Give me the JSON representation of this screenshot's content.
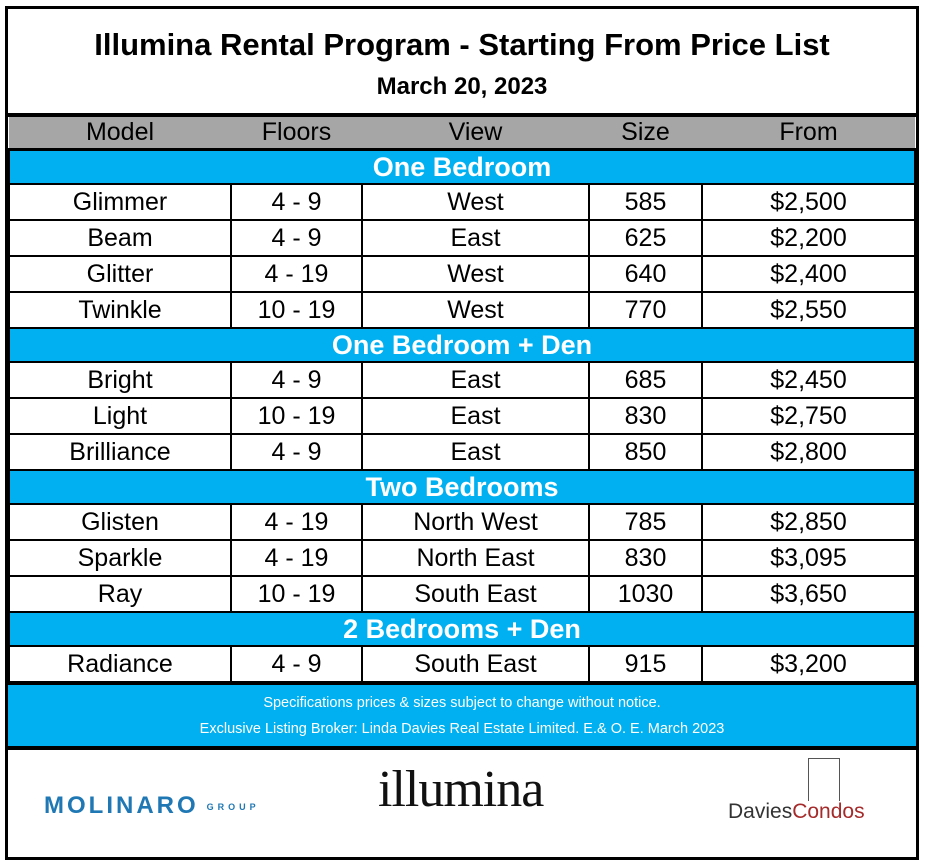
{
  "title": "Illumina Rental Program - Starting From Price List",
  "date": "March 20, 2023",
  "columns": [
    "Model",
    "Floors",
    "View",
    "Size",
    "From"
  ],
  "sections": [
    {
      "name": "One Bedroom",
      "rows": [
        [
          "Glimmer",
          "4 - 9",
          "West",
          "585",
          "$2,500"
        ],
        [
          "Beam",
          "4 - 9",
          "East",
          "625",
          "$2,200"
        ],
        [
          "Glitter",
          "4 - 19",
          "West",
          "640",
          "$2,400"
        ],
        [
          "Twinkle",
          "10 - 19",
          "West",
          "770",
          "$2,550"
        ]
      ]
    },
    {
      "name": "One Bedroom + Den",
      "rows": [
        [
          "Bright",
          "4 - 9",
          "East",
          "685",
          "$2,450"
        ],
        [
          "Light",
          "10 - 19",
          "East",
          "830",
          "$2,750"
        ],
        [
          "Brilliance",
          "4 - 9",
          "East",
          "850",
          "$2,800"
        ]
      ]
    },
    {
      "name": "Two Bedrooms",
      "rows": [
        [
          "Glisten",
          "4 - 19",
          "North West",
          "785",
          "$2,850"
        ],
        [
          "Sparkle",
          "4 - 19",
          "North East",
          "830",
          "$3,095"
        ],
        [
          "Ray",
          "10 - 19",
          "South East",
          "1030",
          "$3,650"
        ]
      ]
    },
    {
      "name": "2 Bedrooms + Den",
      "rows": [
        [
          "Radiance",
          "4 - 9",
          "South East",
          "915",
          "$3,200"
        ]
      ]
    }
  ],
  "footer": {
    "line1": "Specifications prices & sizes subject to change without notice.",
    "line2": "Exclusive Listing Broker: Linda Davies Real Estate Limited. E.& O. E.  March 2023"
  },
  "logos": {
    "molinaro": "MOLINARO",
    "molinaro_sub": "GROUP",
    "illumina": "illumina",
    "davies_a": "Davies",
    "davies_b": "Condos"
  },
  "colors": {
    "section": "#00b0f0",
    "header": "#a6a6a6",
    "molinaro": "#1f78b4",
    "condos": "#a52a2a"
  }
}
